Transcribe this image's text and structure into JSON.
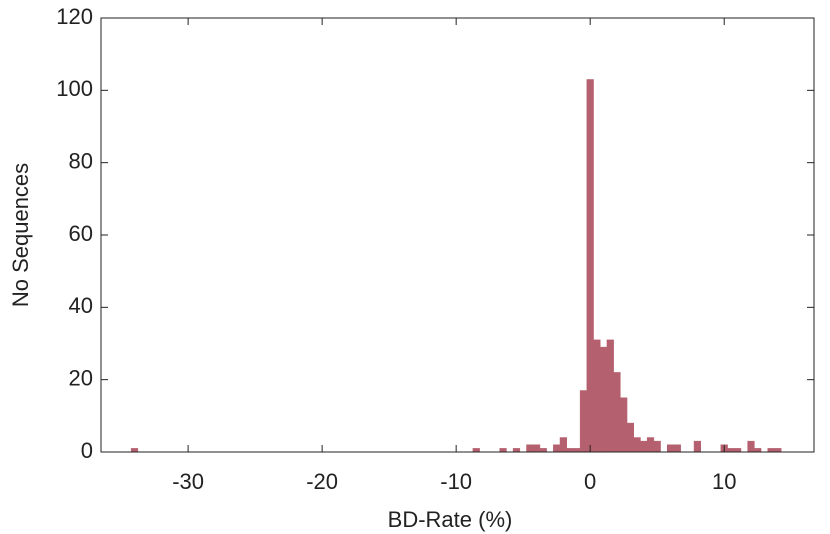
{
  "chart_data": {
    "type": "histogram",
    "xlabel": "BD-Rate (%)",
    "ylabel": "No Sequences",
    "color": "#b5606e",
    "bins": [
      -34.25,
      -33.75,
      -33.25,
      -32.75,
      -32.25,
      -31.75,
      -31.25,
      -30.75,
      -30.25,
      -29.75,
      -29.25,
      -28.75,
      -28.25,
      -27.75,
      -27.25,
      -26.75,
      -26.25,
      -25.75,
      -25.25,
      -24.75,
      -24.25,
      -23.75,
      -23.25,
      -22.75,
      -22.25,
      -21.75,
      -21.25,
      -20.75,
      -20.25,
      -19.75,
      -19.25,
      -18.75,
      -18.25,
      -17.75,
      -17.25,
      -16.75,
      -16.25,
      -15.75,
      -15.25,
      -14.75,
      -14.25,
      -13.75,
      -13.25,
      -12.75,
      -12.25,
      -11.75,
      -11.25,
      -10.75,
      -10.25,
      -9.75,
      -9.25,
      -8.75,
      -8.25,
      -7.75,
      -7.25,
      -6.75,
      -6.25,
      -5.75,
      -5.25,
      -4.75,
      -4.25,
      -3.75,
      -3.25,
      -2.75,
      -2.25,
      -1.75,
      -1.25,
      -0.75,
      -0.25,
      0.25,
      0.75,
      1.25,
      1.75,
      2.25,
      2.75,
      3.25,
      3.75,
      4.25,
      4.75,
      5.25,
      5.75,
      6.25,
      6.75,
      7.25,
      7.75,
      8.25,
      8.75,
      9.25,
      9.75,
      10.25,
      10.75,
      11.25,
      11.75,
      12.25,
      12.75,
      13.25,
      13.75,
      14.25
    ],
    "counts": [
      1,
      0,
      0,
      0,
      0,
      0,
      0,
      0,
      0,
      0,
      0,
      0,
      0,
      0,
      0,
      0,
      0,
      0,
      0,
      0,
      0,
      0,
      0,
      0,
      0,
      0,
      0,
      0,
      0,
      0,
      0,
      0,
      0,
      0,
      0,
      0,
      0,
      0,
      0,
      0,
      0,
      0,
      0,
      0,
      0,
      0,
      0,
      0,
      0,
      0,
      0,
      1,
      0,
      0,
      0,
      1,
      0,
      1,
      0,
      2,
      2,
      1,
      0,
      2,
      4,
      1,
      1,
      17,
      103,
      31,
      29,
      31,
      22,
      15,
      8,
      4,
      3,
      4,
      3,
      0,
      2,
      2,
      0,
      0,
      3,
      0,
      0,
      0,
      2,
      1,
      1,
      0,
      3,
      1,
      0,
      1,
      1
    ],
    "xlim": [
      -36.5,
      16.7
    ],
    "xticks": [
      -30,
      -20,
      -10,
      0,
      10
    ],
    "ylim": [
      0,
      120
    ],
    "yticks": [
      0,
      20,
      40,
      60,
      80,
      100,
      120
    ]
  }
}
